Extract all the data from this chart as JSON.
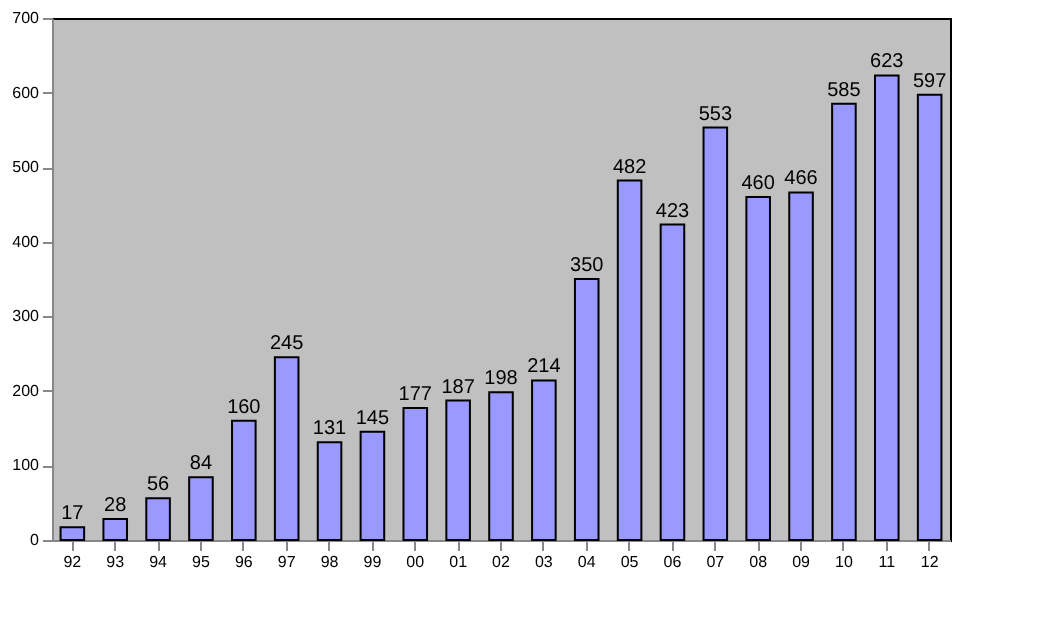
{
  "chart_data": {
    "type": "bar",
    "categories": [
      "92",
      "93",
      "94",
      "95",
      "96",
      "97",
      "98",
      "99",
      "00",
      "01",
      "02",
      "03",
      "04",
      "05",
      "06",
      "07",
      "08",
      "09",
      "10",
      "11",
      "12"
    ],
    "values": [
      17,
      28,
      56,
      84,
      160,
      245,
      131,
      145,
      177,
      187,
      198,
      214,
      350,
      482,
      423,
      553,
      460,
      466,
      585,
      623,
      597
    ],
    "color": "#9999ff",
    "ylim": [
      0,
      700
    ],
    "yticks": [
      0,
      100,
      200,
      300,
      400,
      500,
      600,
      700
    ],
    "grid": false,
    "data_labels": true
  }
}
